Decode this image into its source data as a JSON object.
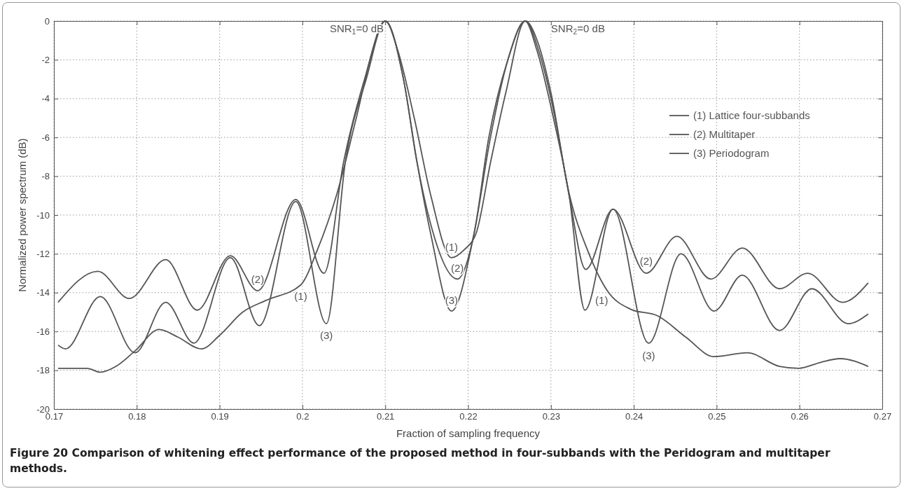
{
  "chart_data": {
    "type": "line",
    "xlabel": "Fraction of sampling frequency",
    "ylabel": "Normalized power spectrum (dB)",
    "xlim": [
      0.17,
      0.27
    ],
    "xticks": [
      0.17,
      0.18,
      0.19,
      {
        "value": 0.2,
        "label": "0.2"
      },
      0.21,
      0.22,
      0.23,
      0.24,
      0.25,
      0.26,
      0.27
    ],
    "ylim": [
      -20,
      0
    ],
    "yticks": [
      -20,
      -18,
      -16,
      -14,
      -12,
      -10,
      -8,
      -6,
      -4,
      -2,
      0
    ],
    "grid": true,
    "legend": "right",
    "marker": "none",
    "line_style": "solid",
    "series": [
      {
        "name": "(1) Lattice four-subbands",
        "color": "#555555",
        "x": [
          0.1705,
          0.174,
          0.1756,
          0.1775,
          0.1798,
          0.1827,
          0.185,
          0.1878,
          0.19,
          0.1928,
          0.1956,
          0.1998,
          0.2018,
          0.2041,
          0.2065,
          0.2085,
          0.21,
          0.2115,
          0.2135,
          0.2155,
          0.218,
          0.2195,
          0.221,
          0.2227,
          0.2246,
          0.2269,
          0.2285,
          0.23,
          0.2322,
          0.2345,
          0.2368,
          0.2396,
          0.2429,
          0.2463,
          0.2497,
          0.2537,
          0.2576,
          0.2599,
          0.2625,
          0.2649,
          0.2683
        ],
        "values": [
          -17.9,
          -17.9,
          -18.1,
          -17.8,
          -17.0,
          -15.9,
          -16.3,
          -16.9,
          -16.2,
          -15.0,
          -14.4,
          -13.6,
          -11.8,
          -9.0,
          -5.0,
          -1.5,
          0,
          -1.5,
          -5.0,
          -9.0,
          -12.2,
          -11.8,
          -10.9,
          -7.3,
          -3.6,
          0,
          -1.2,
          -3.7,
          -8.9,
          -11.9,
          -13.9,
          -14.85,
          -15.2,
          -16.3,
          -17.3,
          -17.1,
          -17.8,
          -17.9,
          -17.6,
          -17.4,
          -17.8
        ]
      },
      {
        "name": "(2) Multitaper",
        "color": "#555555",
        "x": [
          0.1705,
          0.1753,
          0.1791,
          0.1835,
          0.1873,
          0.1913,
          0.1946,
          0.1992,
          0.2026,
          0.205,
          0.2075,
          0.21,
          0.2122,
          0.2138,
          0.2155,
          0.2187,
          0.2207,
          0.2225,
          0.2248,
          0.2269,
          0.2285,
          0.2305,
          0.2322,
          0.2342,
          0.2375,
          0.2415,
          0.2452,
          0.2493,
          0.2531,
          0.2576,
          0.261,
          0.2652,
          0.2683
        ],
        "values": [
          -14.5,
          -12.9,
          -14.3,
          -12.3,
          -14.9,
          -12.1,
          -13.9,
          -9.2,
          -13.0,
          -7.2,
          -3.0,
          0,
          -3.0,
          -7.2,
          -10.5,
          -13.3,
          -11.0,
          -6.0,
          -2.0,
          0,
          -1.5,
          -5.0,
          -9.0,
          -12.8,
          -9.7,
          -13.0,
          -11.1,
          -13.3,
          -11.7,
          -13.8,
          -13.0,
          -14.5,
          -13.5
        ]
      },
      {
        "name": "(3) Periodogram",
        "color": "#555555",
        "x": [
          0.1705,
          0.1714,
          0.1756,
          0.1798,
          0.1835,
          0.1869,
          0.1913,
          0.1948,
          0.1992,
          0.2029,
          0.2052,
          0.2077,
          0.21,
          0.2122,
          0.2138,
          0.2155,
          0.218,
          0.2207,
          0.2227,
          0.2248,
          0.2269,
          0.2283,
          0.2303,
          0.2322,
          0.2341,
          0.2375,
          0.2418,
          0.2457,
          0.2497,
          0.2531,
          0.2576,
          0.2615,
          0.2659,
          0.2683
        ],
        "values": [
          -16.7,
          -16.9,
          -14.2,
          -17.1,
          -14.5,
          -16.6,
          -12.2,
          -15.7,
          -9.3,
          -15.6,
          -7.2,
          -3.0,
          0,
          -3.0,
          -7.2,
          -11.0,
          -14.95,
          -11.0,
          -6.0,
          -2.0,
          0,
          -1.5,
          -5.0,
          -9.0,
          -14.9,
          -9.7,
          -16.6,
          -12.0,
          -14.95,
          -13.1,
          -15.95,
          -13.8,
          -15.6,
          -15.1
        ]
      }
    ],
    "annotations": [
      "SNR$_{1}$=0 dB",
      "SNR$_{2}$=0 dB",
      {
        "text": "(2)",
        "x": 0.1946,
        "y": -13.9
      },
      {
        "text": "(1)",
        "x": 0.1998,
        "y": -13.6
      },
      {
        "text": "(3)",
        "x": 0.2029,
        "y": -15.6
      },
      {
        "text": "(1)",
        "x": 0.218,
        "y": -12.2
      },
      {
        "text": "(2)",
        "x": 0.2187,
        "y": -13.3
      },
      {
        "text": "(3)",
        "x": 0.218,
        "y": -14.95
      },
      {
        "text": "(1)",
        "x": 0.2368,
        "y": -13.9
      },
      {
        "text": "(2)",
        "x": 0.2415,
        "y": -13.0
      },
      {
        "text": "(3)",
        "x": 0.2418,
        "y": -16.6
      },
      "Figure 20 Comparison of whitening effect performance of the proposed method in four-subbands with the Peridogram and multitaper methods."
    ]
  }
}
